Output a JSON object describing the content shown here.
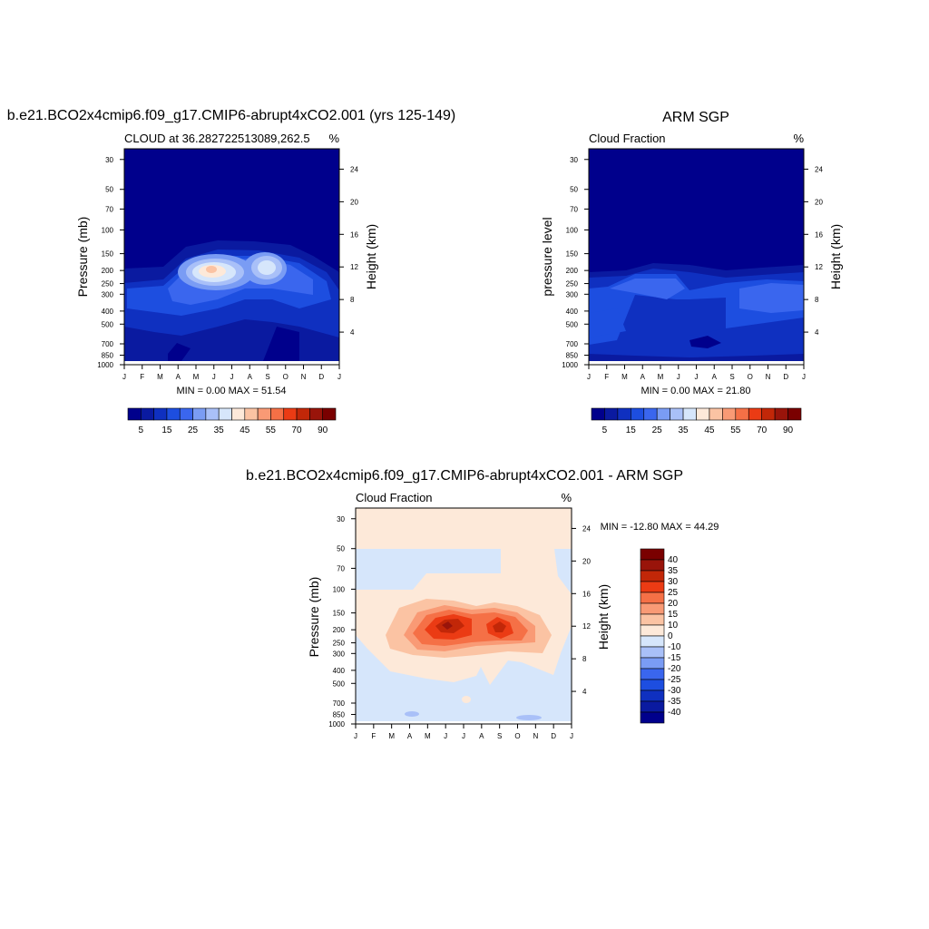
{
  "colors": {
    "levels_pos": [
      "#00008c",
      "#0a1aa0",
      "#0f30c0",
      "#1d4ee0",
      "#3a66ee",
      "#7a9cf4",
      "#a9c0f8",
      "#d6e6fb",
      "#fde9d9",
      "#fbc3a3",
      "#f99a75",
      "#f57046",
      "#eb3b14",
      "#c22708",
      "#99140a",
      "#7a0000"
    ],
    "diff_levels": [
      "#00008c",
      "#0a1aa0",
      "#0f30c0",
      "#1d4ee0",
      "#3a66ee",
      "#7a9cf4",
      "#a9c0f8",
      "#d6e6fb",
      "#fde9d9",
      "#fbc3a3",
      "#f99a75",
      "#f57046",
      "#eb3b14",
      "#c22708",
      "#99140a",
      "#7a0000"
    ]
  },
  "chart_data": [
    {
      "type": "heatmap",
      "title": "b.e21.BCO2x4cmip6.f09_g17.CMIP6-abrupt4xCO2.001 (yrs 125-149)",
      "subtitle_left": "CLOUD at 36.282722513089,262.5",
      "subtitle_right": "%",
      "ylabel": "Pressure (mb)",
      "ylabel_right": "Height (km)",
      "x_ticks": [
        "J",
        "F",
        "M",
        "A",
        "M",
        "J",
        "J",
        "A",
        "S",
        "O",
        "N",
        "D",
        "J"
      ],
      "y_ticks": [
        "30",
        "50",
        "70",
        "100",
        "150",
        "200",
        "250",
        "300",
        "400",
        "500",
        "700",
        "850",
        "1000"
      ],
      "y_ticks_right": [
        "24",
        "20",
        "16",
        "12",
        "8",
        "4"
      ],
      "minmax": "MIN =   0.00 MAX =  51.54",
      "colorbar_labels": [
        "5",
        "15",
        "25",
        "35",
        "45",
        "55",
        "70",
        "90"
      ],
      "peak": {
        "month": "Jun",
        "pressure_mb": 200,
        "value": 51.54
      }
    },
    {
      "type": "heatmap",
      "title": "ARM SGP",
      "subtitle_left": "Cloud Fraction",
      "subtitle_right": "%",
      "ylabel": "pressure level",
      "ylabel_right": "Height (km)",
      "x_ticks": [
        "J",
        "F",
        "M",
        "A",
        "M",
        "J",
        "J",
        "A",
        "S",
        "O",
        "N",
        "D",
        "J"
      ],
      "y_ticks": [
        "30",
        "50",
        "70",
        "100",
        "150",
        "200",
        "250",
        "300",
        "400",
        "500",
        "700",
        "850",
        "1000"
      ],
      "y_ticks_right": [
        "24",
        "20",
        "16",
        "12",
        "8",
        "4"
      ],
      "minmax": "MIN =   0.00 MAX =  21.80",
      "colorbar_labels": [
        "5",
        "15",
        "25",
        "35",
        "45",
        "55",
        "70",
        "90"
      ],
      "max_value": 21.8
    },
    {
      "type": "heatmap",
      "title": "b.e21.BCO2x4cmip6.f09_g17.CMIP6-abrupt4xCO2.001 - ARM SGP",
      "subtitle_left": "Cloud Fraction",
      "subtitle_right": "%",
      "ylabel": "Pressure (mb)",
      "ylabel_right": "Height (km)",
      "x_ticks": [
        "J",
        "F",
        "M",
        "A",
        "M",
        "J",
        "J",
        "A",
        "S",
        "O",
        "N",
        "D",
        "J"
      ],
      "y_ticks": [
        "30",
        "50",
        "70",
        "100",
        "150",
        "200",
        "250",
        "300",
        "400",
        "500",
        "700",
        "850",
        "1000"
      ],
      "y_ticks_right": [
        "24",
        "20",
        "16",
        "12",
        "8",
        "4"
      ],
      "minmax": "MIN = -12.80 MAX =  44.29",
      "colorbar_labels": [
        "40",
        "35",
        "30",
        "25",
        "20",
        "15",
        "10",
        "0",
        "-10",
        "-15",
        "-20",
        "-25",
        "-30",
        "-35",
        "-40"
      ],
      "peak": {
        "month": "Jun",
        "pressure_mb": 175,
        "value": 44.29
      }
    }
  ]
}
